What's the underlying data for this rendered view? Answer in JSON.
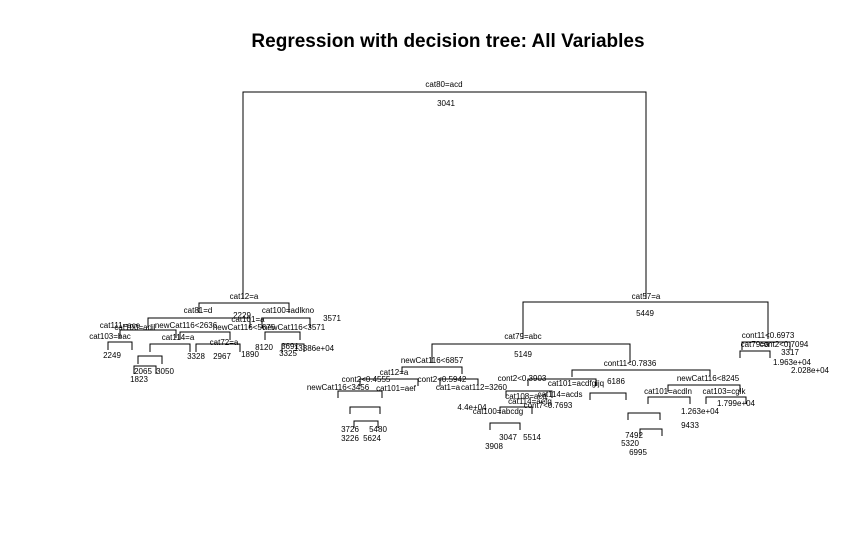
{
  "title": "Regression with decision tree: All Variables",
  "colors": {
    "background": "#ffffff",
    "ink": "#000000"
  },
  "tree": {
    "root": {
      "split": "cat80=acd",
      "value": "3041"
    },
    "left": {
      "split": "cat12=a",
      "children_left": {
        "split": "cat81=d",
        "value": "2229"
      },
      "children_right": {
        "split": "cat100=adlkno",
        "value": "3571"
      },
      "deep_labels": [
        "cat100=adil",
        "cat111=ace",
        "cat103=bac",
        "newCat116<2636",
        "newCat116<5675",
        "cat101=a",
        "newCat116<3571",
        "cat114=a",
        "cat72=a",
        "3328",
        "2967",
        "8120",
        "1890",
        "2065",
        "3050",
        "1823",
        "3691",
        "13386e+04",
        "3325",
        "2249"
      ]
    },
    "right": {
      "split": "cat57=a",
      "value": "5449",
      "children_left": {
        "split": "cat79=abc",
        "value": "5149"
      },
      "children_right": {
        "split": "cont11<0.6973",
        "value": ""
      },
      "sub_left": {
        "split": "newCat116<6857",
        "value": ""
      },
      "sub_right": {
        "split": "cont11<0.7836",
        "value": "6186"
      },
      "deep_labels": [
        "cat12=a",
        "cont2<0.4555",
        "cont2<0.5942",
        "newCat116<3456",
        "cat101=aef",
        "cat1=a",
        "cat112=3260",
        "4.4e+04",
        "cont2<0.3903",
        "cat101=acdfgijq",
        "cat114=acds",
        "newCat116<8245",
        "cat101=acdln",
        "cat103=cglk",
        "cat79=a",
        "cont2<0.7094",
        "3317",
        "1.963e+04",
        "2.028e+04",
        "cat100=abcdg",
        "cat114=aefg",
        "cat108=acd",
        "cont7<0.7693",
        "3047",
        "5514",
        "5320",
        "6995",
        "7492",
        "1.799e+04",
        "1.263e+04",
        "9433",
        "3726",
        "5480",
        "3226",
        "5624",
        "3908"
      ]
    }
  }
}
